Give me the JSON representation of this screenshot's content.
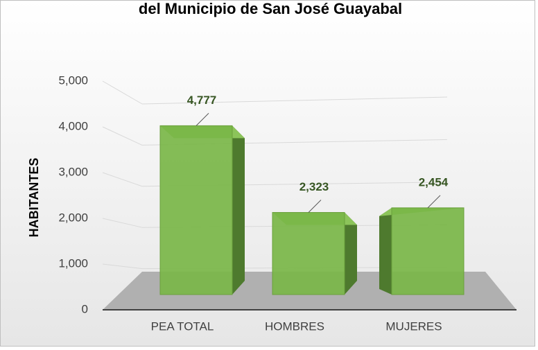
{
  "chart_data": {
    "type": "bar3d",
    "title": "del Municipio de San José Guayabal",
    "y_axis_label": "HABITANTES",
    "categories": [
      "PEA TOTAL",
      "HOMBRES",
      "MUJERES"
    ],
    "values": [
      4777,
      2323,
      2454
    ],
    "value_labels": [
      "4,777",
      "2,323",
      "2,454"
    ],
    "color": "#7ab648",
    "ylim": [
      0,
      5000
    ],
    "yticks": [
      0,
      {
        "value": 1000,
        "label": "1,000"
      },
      {
        "value": 2000,
        "label": "2,000"
      },
      {
        "value": 3000,
        "label": "3,000"
      },
      {
        "value": 4000,
        "label": "4,000"
      },
      {
        "value": 5000,
        "label": "5,000"
      }
    ],
    "grid": true
  }
}
